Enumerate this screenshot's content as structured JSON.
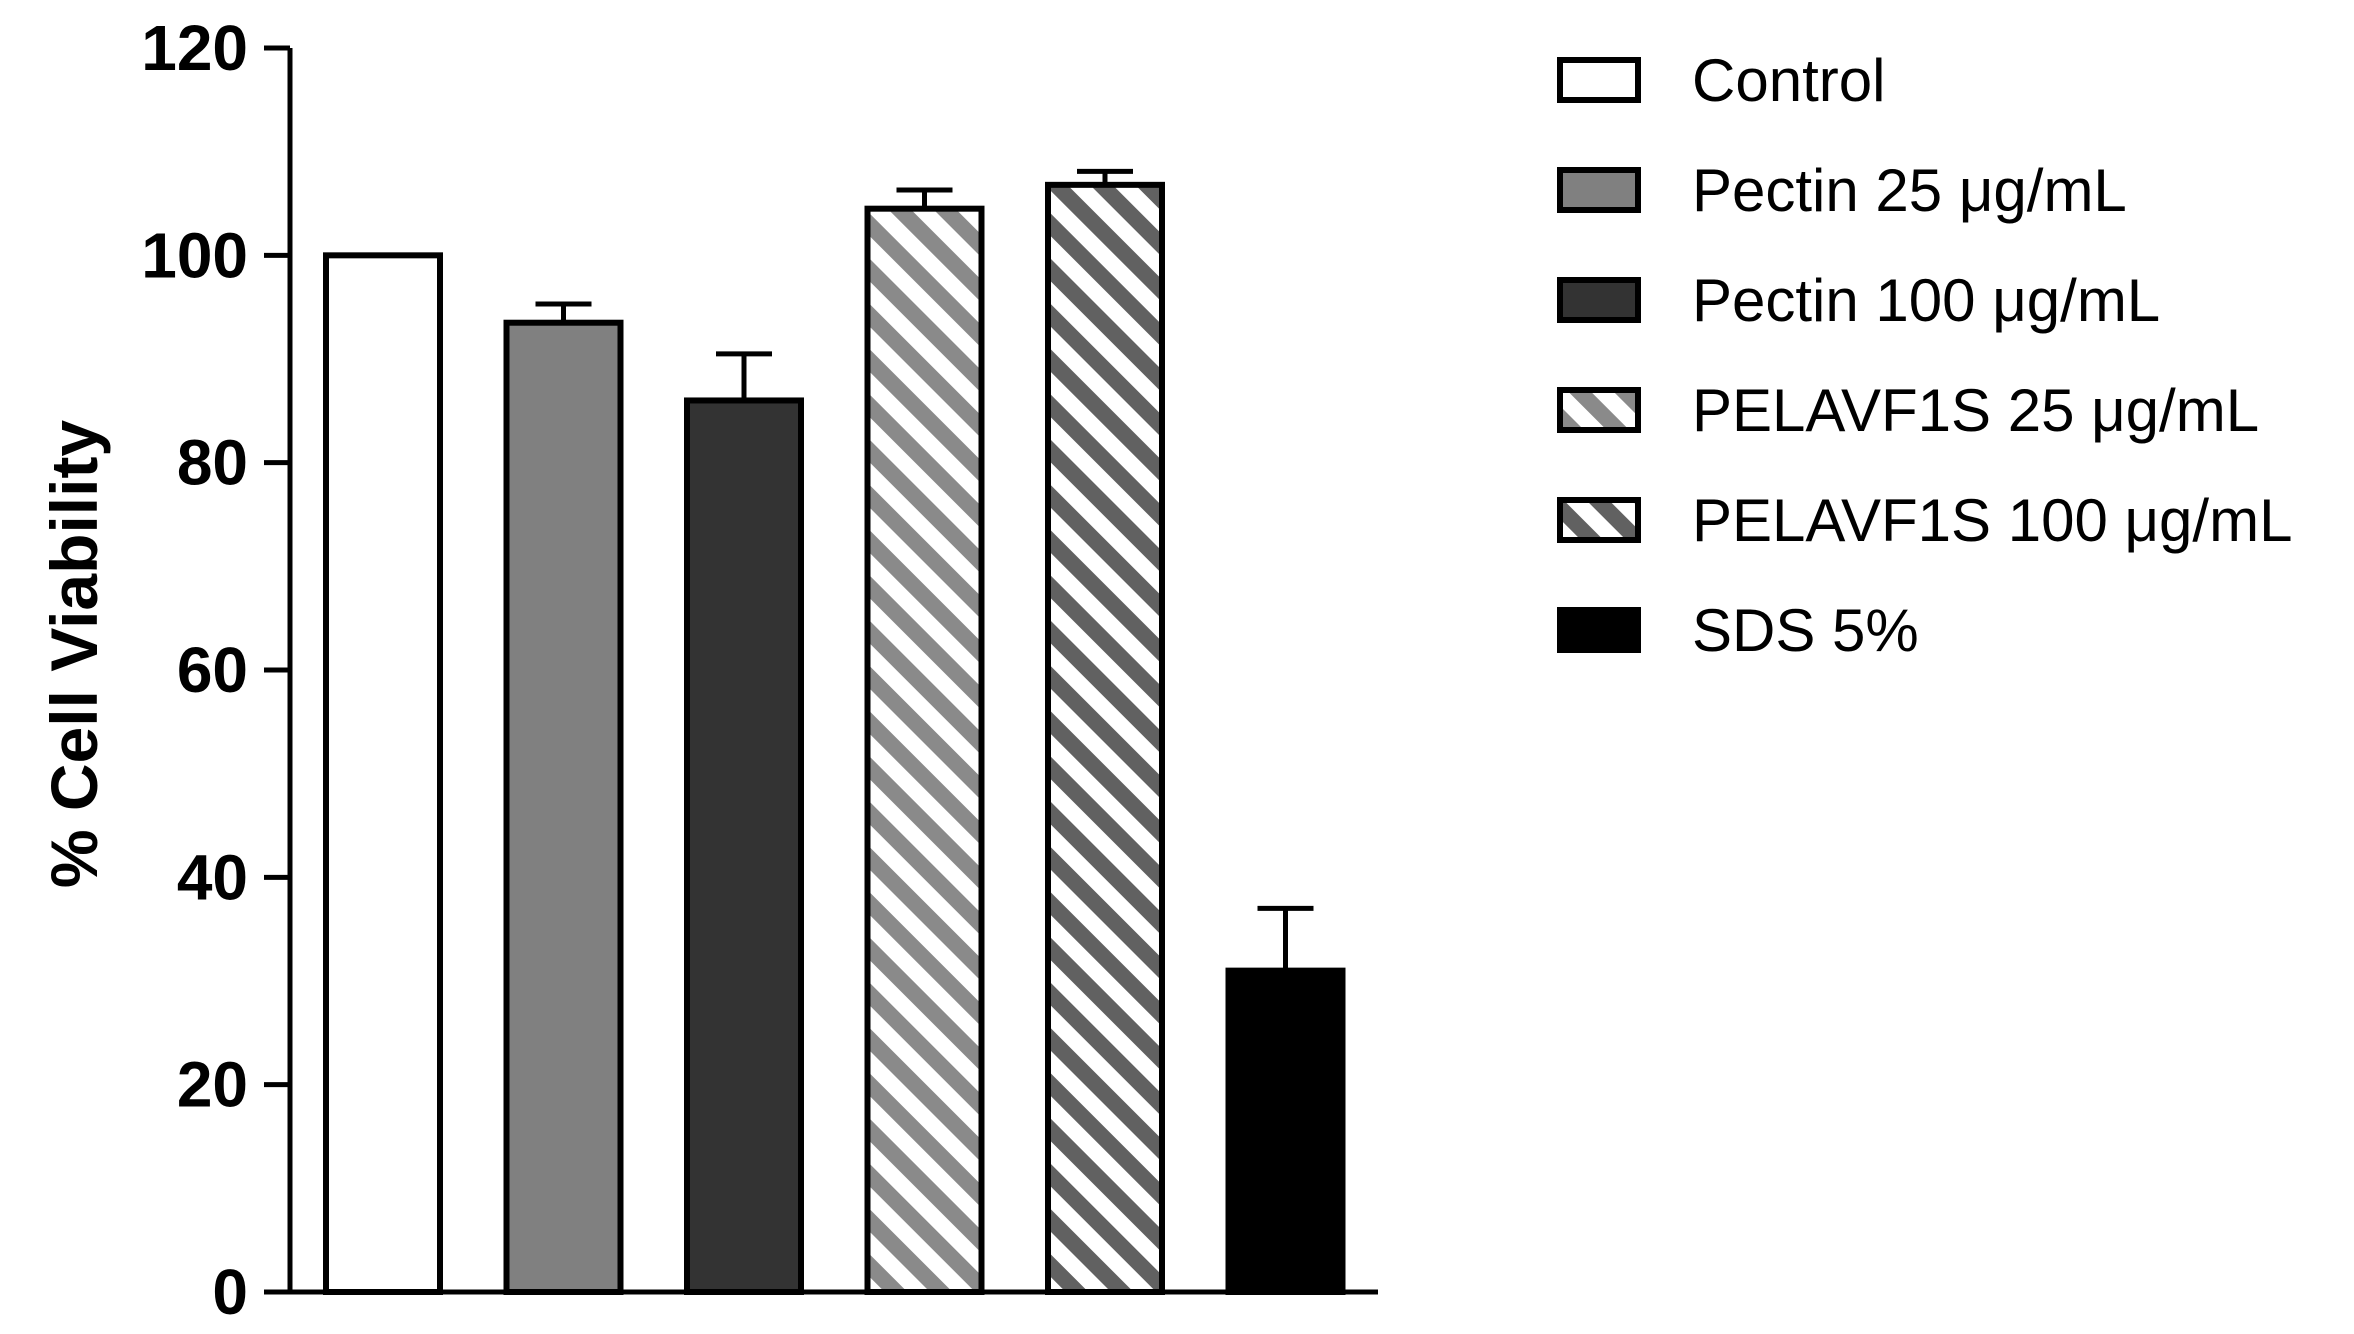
{
  "chart_data": {
    "type": "bar",
    "title": "",
    "xlabel": "",
    "ylabel": "% Cell Viability",
    "ylim": [
      0,
      120
    ],
    "yticks": [
      0,
      20,
      40,
      60,
      80,
      100,
      120
    ],
    "legend_position": "right",
    "categories": [
      "Control",
      "Pectin 25 μg/mL",
      "Pectin 100 μg/mL",
      "PELAVF1S 25 μg/mL",
      "PELAVF1S 100 μg/mL",
      "SDS 5%"
    ],
    "values": [
      100,
      93.5,
      86,
      104.5,
      106.8,
      31
    ],
    "errors": [
      0,
      1.8,
      4.5,
      1.8,
      1.3,
      6
    ],
    "styles": [
      {
        "fill": "#ffffff",
        "hatch": false
      },
      {
        "fill": "#808080",
        "hatch": false
      },
      {
        "fill": "#333333",
        "hatch": false
      },
      {
        "fill": "#ffffff",
        "hatch": true,
        "stripe": "#8a8a8a"
      },
      {
        "fill": "#ffffff",
        "hatch": true,
        "stripe": "#616161"
      },
      {
        "fill": "#000000",
        "hatch": false
      }
    ]
  }
}
